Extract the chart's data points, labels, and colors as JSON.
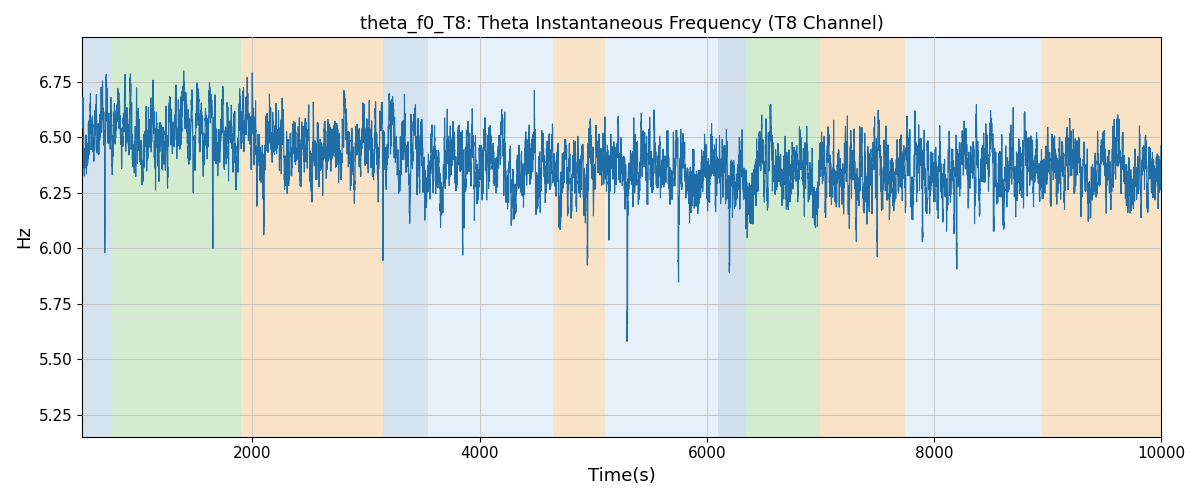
{
  "title": "theta_f0_T8: Theta Instantaneous Frequency (T8 Channel)",
  "xlabel": "Time(s)",
  "ylabel": "Hz",
  "xlim": [
    500,
    10000
  ],
  "ylim": [
    5.15,
    6.95
  ],
  "line_color": "#1f6ea8",
  "line_width": 0.8,
  "background_color": "#ffffff",
  "seed": 42,
  "bands": [
    {
      "start": 500,
      "end": 750,
      "color": "#adc8e0",
      "alpha": 0.5
    },
    {
      "start": 750,
      "end": 1900,
      "color": "#a8d8a0",
      "alpha": 0.5
    },
    {
      "start": 1900,
      "end": 3150,
      "color": "#f5c990",
      "alpha": 0.5
    },
    {
      "start": 3150,
      "end": 3550,
      "color": "#adc8e0",
      "alpha": 0.5
    },
    {
      "start": 3550,
      "end": 4650,
      "color": "#d0e4f5",
      "alpha": 0.55
    },
    {
      "start": 4650,
      "end": 5100,
      "color": "#f5c990",
      "alpha": 0.5
    },
    {
      "start": 5100,
      "end": 6100,
      "color": "#d0e4f5",
      "alpha": 0.55
    },
    {
      "start": 6100,
      "end": 6350,
      "color": "#adc8e0",
      "alpha": 0.55
    },
    {
      "start": 6350,
      "end": 7000,
      "color": "#a8d8a0",
      "alpha": 0.5
    },
    {
      "start": 7000,
      "end": 7750,
      "color": "#f5c990",
      "alpha": 0.5
    },
    {
      "start": 7750,
      "end": 8950,
      "color": "#d0e4f5",
      "alpha": 0.55
    },
    {
      "start": 8950,
      "end": 10000,
      "color": "#f5c990",
      "alpha": 0.5
    }
  ],
  "yticks": [
    5.25,
    5.5,
    5.75,
    6.0,
    6.25,
    6.5,
    6.75
  ],
  "xticks": [
    2000,
    4000,
    6000,
    8000,
    10000
  ],
  "n_points": 9500,
  "t_start": 500,
  "t_end": 10000
}
